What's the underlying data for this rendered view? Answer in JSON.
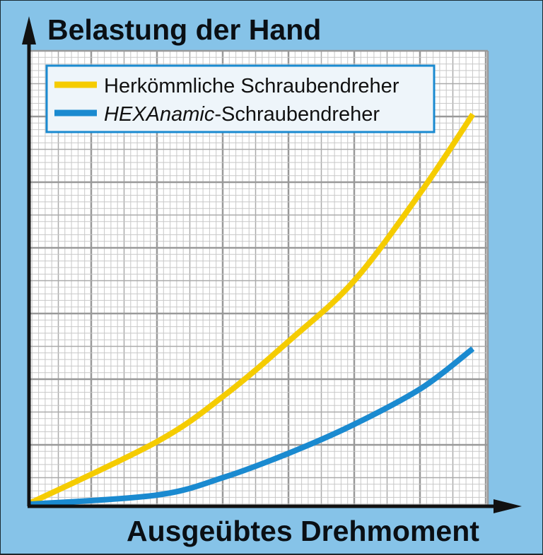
{
  "chart_data": {
    "type": "line",
    "title": "Belastung der Hand",
    "xlabel": "Ausgeübtes Drehmoment",
    "ylabel": "Belastung der Hand",
    "grid": true,
    "legend_placement": "top-left",
    "xlim": [
      0,
      7
    ],
    "ylim": [
      0,
      7
    ],
    "series": [
      {
        "name": "Herkömmliche Schraubendreher",
        "color": "#f5cc00",
        "x": [
          0,
          1.94,
          2.96,
          3.98,
          4.95,
          5.97,
          6.75
        ],
        "y": [
          0.04,
          0.98,
          1.68,
          2.54,
          3.44,
          4.8,
          5.97
        ]
      },
      {
        "name": "HEXAnamic-Schraubendreher",
        "name_italic_part": "HEXAnamic",
        "name_rest": "-Schraubendreher",
        "color": "#1a8ad0",
        "x": [
          0,
          1.94,
          2.96,
          3.98,
          4.95,
          5.97,
          6.75
        ],
        "y": [
          0.03,
          0.17,
          0.44,
          0.82,
          1.25,
          1.8,
          2.4
        ]
      }
    ]
  },
  "colors": {
    "background": "#86c3e8",
    "grid_major": "#999999",
    "grid_minor": "#c8c8c8",
    "axis": "#111111"
  }
}
